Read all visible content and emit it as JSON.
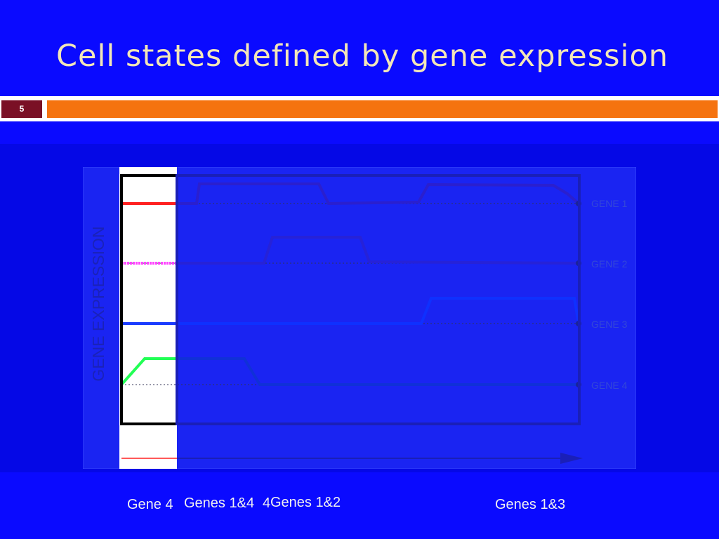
{
  "slide": {
    "title": "Cell states defined by gene expression",
    "number": "5"
  },
  "figure": {
    "y_axis_label": "GENE EXPRESSION",
    "gene_labels": [
      "GENE 1",
      "GENE 2",
      "GENE 3",
      "GENE 4"
    ],
    "colors": {
      "gene1": "#ff2020",
      "gene2": "#ff44ff",
      "gene3": "#1a3cff",
      "gene4": "#22ff55",
      "background": "#0a0aff",
      "accent": "#f5730f"
    }
  },
  "captions": {
    "state1": "Gene 4",
    "state2": "Genes 1&4",
    "state2_overlap": "4",
    "state3": "Genes 1&2",
    "state4": "Genes 1&3"
  }
}
